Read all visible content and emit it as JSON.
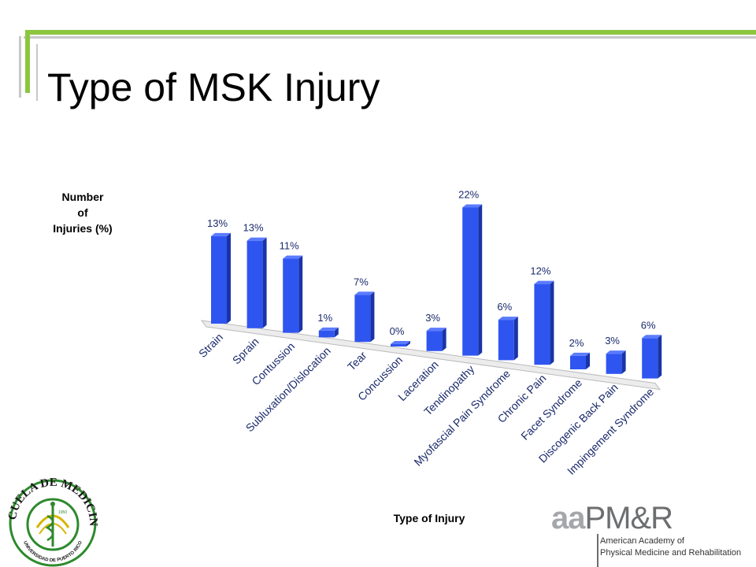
{
  "slide": {
    "title": "Type of MSK Injury",
    "accent_green": "#8cc63f",
    "accent_gray": "#c8c8c8"
  },
  "chart_data": {
    "type": "bar",
    "title": "",
    "ylabel_lines": [
      "Number",
      "of",
      "Injuries (%)"
    ],
    "xlabel": "Type of Injury",
    "categories": [
      "Strain",
      "Sprain",
      "Contussion",
      "Subluxation/Dislocation",
      "Tear",
      "Concussion",
      "Laceration",
      "Tendinopathy",
      "Myofascial Pain Syndrome",
      "Chronic Pain",
      "Facet Syndrome",
      "Discogenic Back Pain",
      "Impingement Syndrome"
    ],
    "values": [
      13,
      13,
      11,
      1,
      7,
      0,
      3,
      22,
      6,
      12,
      2,
      3,
      6
    ],
    "value_labels": [
      "13%",
      "13%",
      "11%",
      "1%",
      "7%",
      "0%",
      "3%",
      "22%",
      "6%",
      "12%",
      "2%",
      "3%",
      "6%"
    ],
    "ylim": [
      0,
      22
    ],
    "grid": false,
    "legend": "none",
    "bar_color": "#2f55f0",
    "bar_side_color": "#1a34a8",
    "bar_top_color": "#5b7bff"
  },
  "logos": {
    "escuela": {
      "arc_text": "ESCUELA DE MEDICINA",
      "bottom_text": "UNIVERSIDAD DE PUERTO RICO",
      "year": "1950",
      "ring_color": "#2d8a2d",
      "gold_color": "#d8b400",
      "icon": "caduceus-icon"
    },
    "aapmr": {
      "lower": "aa",
      "upper": "PM&R",
      "line1": "American Academy of",
      "line2": "Physical Medicine and Rehabilitation"
    }
  }
}
